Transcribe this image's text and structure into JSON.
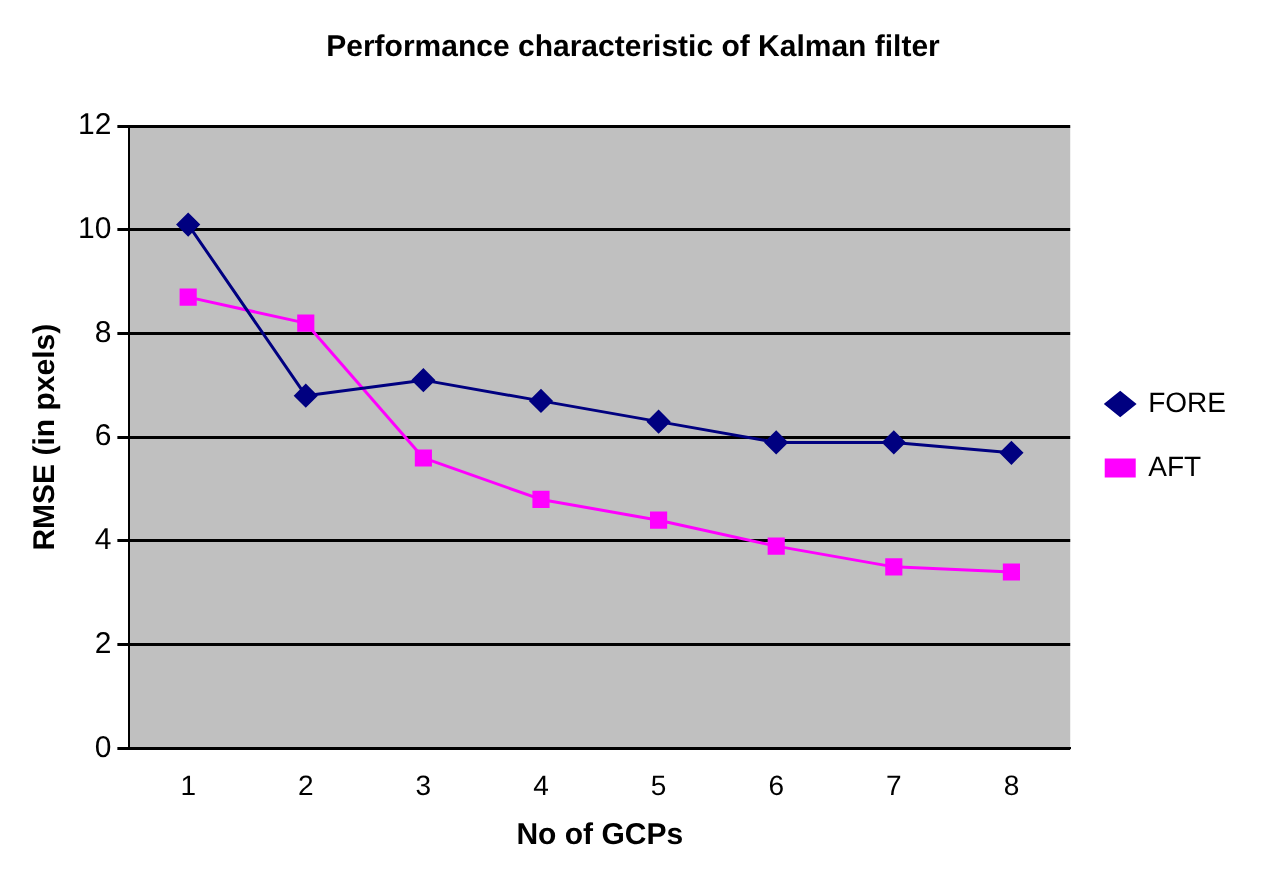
{
  "chart_data": {
    "type": "line",
    "title": "Performance characteristic of Kalman filter",
    "xlabel": "No of GCPs",
    "ylabel": "RMSE (in pxels)",
    "categories": [
      "1",
      "2",
      "3",
      "4",
      "5",
      "6",
      "7",
      "8"
    ],
    "series": [
      {
        "name": "FORE",
        "color": "#000080",
        "marker": "diamond",
        "values": [
          10.1,
          6.8,
          7.1,
          6.7,
          6.3,
          5.9,
          5.9,
          5.7
        ]
      },
      {
        "name": "AFT",
        "color": "#ff00ff",
        "marker": "square",
        "values": [
          8.7,
          8.2,
          5.6,
          4.8,
          4.4,
          3.9,
          3.5,
          3.4
        ]
      }
    ],
    "ylim": [
      0,
      12
    ],
    "yticks": [
      0,
      2,
      4,
      6,
      8,
      10,
      12
    ],
    "grid": "y",
    "legend": "right"
  }
}
